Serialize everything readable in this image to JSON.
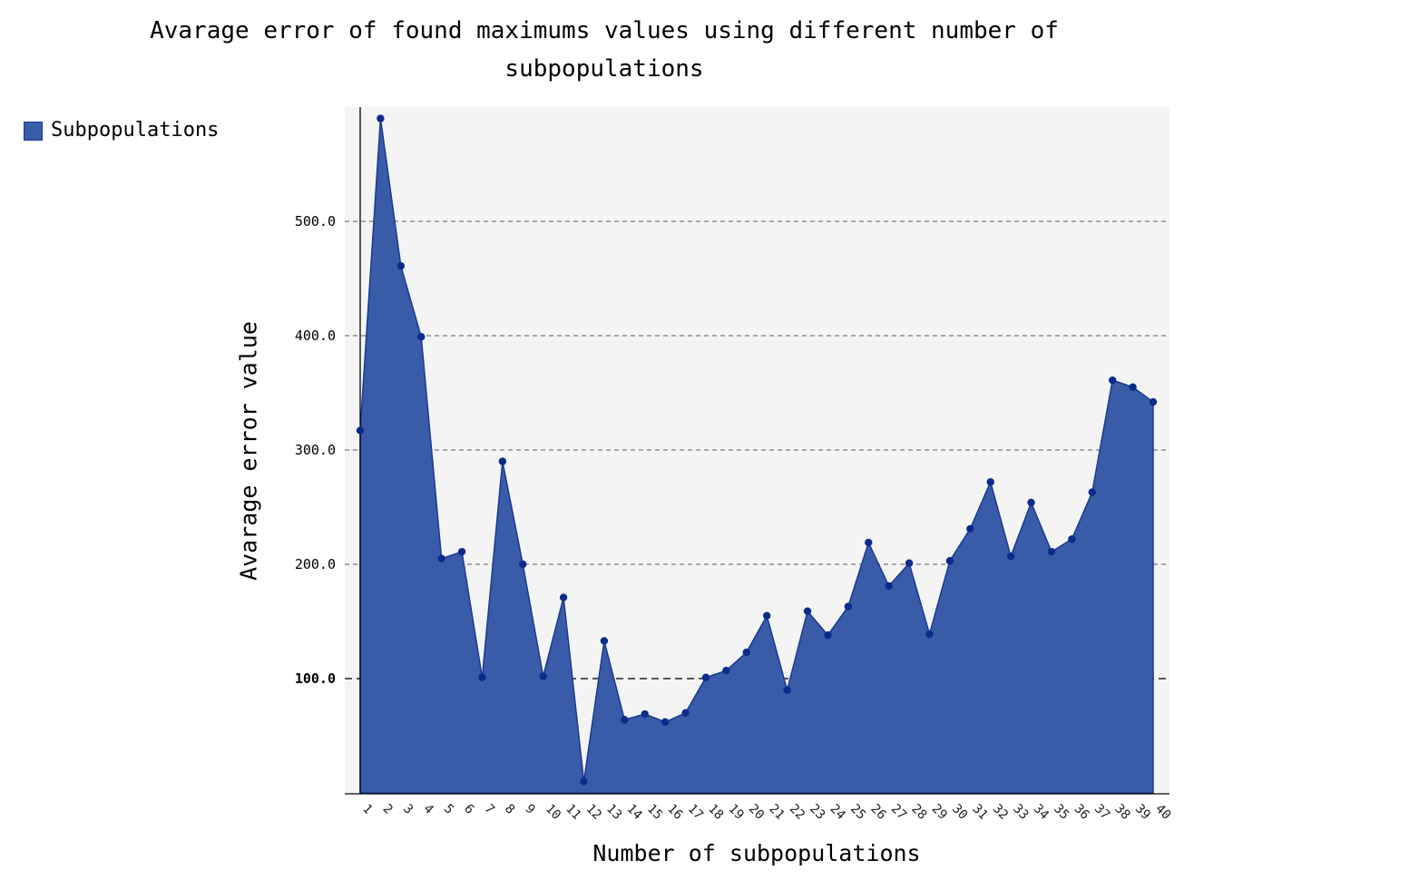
{
  "chart_data": {
    "type": "area",
    "title_lines": [
      "Avarage error of found maximums values using different number of",
      "subpopulations"
    ],
    "xlabel": "Number of subpopulations",
    "ylabel": "Avarage error value",
    "legend": {
      "position": "top-left",
      "entries": [
        "Subpopulations"
      ]
    },
    "ylim": [
      0,
      600
    ],
    "yticks": [
      100,
      200,
      300,
      400,
      500
    ],
    "ytick_labels": [
      "100.0",
      "200.0",
      "300.0",
      "400.0",
      "500.0"
    ],
    "x": [
      1,
      2,
      3,
      4,
      5,
      6,
      7,
      8,
      9,
      10,
      11,
      12,
      13,
      14,
      15,
      16,
      17,
      18,
      19,
      20,
      21,
      22,
      23,
      24,
      25,
      26,
      27,
      28,
      29,
      30,
      31,
      32,
      33,
      34,
      35,
      36,
      37,
      38,
      39,
      40
    ],
    "x_labels": [
      "1",
      "2",
      "3",
      "4",
      "5",
      "6",
      "7",
      "8",
      "9",
      "10",
      "11",
      "12",
      "13",
      "14",
      "15",
      "16",
      "17",
      "18",
      "19",
      "20",
      "21",
      "22",
      "23",
      "24",
      "25",
      "26",
      "27",
      "28",
      "29",
      "30",
      "31",
      "32",
      "33",
      "34",
      "35",
      "36",
      "37",
      "38",
      "39",
      "40"
    ],
    "series": [
      {
        "name": "Subpopulations",
        "values": [
          317,
          590,
          461,
          399,
          205,
          211,
          101,
          290,
          200,
          102,
          171,
          10,
          133,
          64,
          69,
          62,
          70,
          101,
          107,
          123,
          155,
          90,
          159,
          138,
          163,
          219,
          181,
          201,
          139,
          203,
          231,
          272,
          207,
          254,
          211,
          222,
          263,
          361,
          355,
          342
        ]
      }
    ],
    "grid": "horizontal-dashed",
    "colors": {
      "fill": "#3a5ca8",
      "line": "#1a3a90",
      "marker": "#0d2b8a",
      "plot_bg": "#f4f4f4"
    }
  }
}
